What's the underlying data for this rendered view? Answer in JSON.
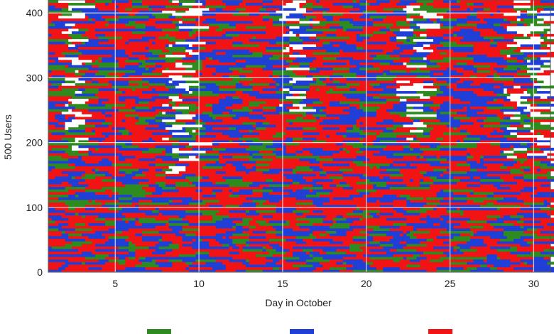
{
  "chart_data": {
    "type": "heatmap",
    "title": "",
    "xlabel": "Day in October",
    "ylabel": "500 Users",
    "xlim": [
      1,
      31
    ],
    "ylim": [
      0,
      420
    ],
    "x_ticks": [
      5,
      10,
      15,
      20,
      25,
      30
    ],
    "y_ticks": [
      0,
      100,
      200,
      300,
      400
    ],
    "grid": true,
    "legend_position": "bottom",
    "categories": [
      {
        "color": "#2e8b1f"
      },
      {
        "color": "#1f3fd6"
      },
      {
        "color": "#f21414"
      },
      {
        "color": "#ffffff"
      }
    ],
    "cell_size": {
      "days": 0.2,
      "users": 4
    }
  }
}
